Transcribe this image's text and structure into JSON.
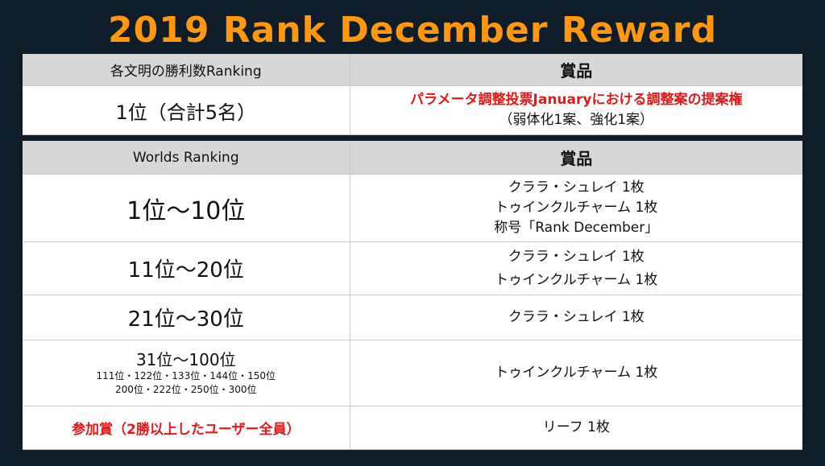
{
  "title": "2019 Rank December Reward",
  "table1": {
    "header_left": "各文明の勝利数Ranking",
    "header_right": "賞品",
    "rank": "1位（合計5名）",
    "reward_line1": "パラメータ調整投票Januaryにおける調整案の提案権",
    "reward_line2": "（弱体化1案、強化1案）"
  },
  "table2": {
    "header_left": "Worlds Ranking",
    "header_right": "賞品",
    "rows": [
      {
        "rank": "1位～10位",
        "rewards": [
          "クララ・シュレイ 1枚",
          "トゥインクルチャーム 1枚",
          "称号「Rank December」"
        ]
      },
      {
        "rank": "11位～20位",
        "rewards": [
          "クララ・シュレイ 1枚",
          "トゥインクルチャーム 1枚"
        ]
      },
      {
        "rank": "21位～30位",
        "rewards": [
          "クララ・シュレイ 1枚"
        ]
      },
      {
        "rank": "31位～100位",
        "rank_sub1": "111位・122位・133位・144位・150位",
        "rank_sub2": "200位・222位・250位・300位",
        "rewards": [
          "トゥインクルチャーム 1枚"
        ]
      },
      {
        "rank": "参加賞（2勝以上したユーザー全員）",
        "rewards": [
          "リーフ 1枚"
        ]
      }
    ]
  },
  "colors": {
    "background": "#0f1d2a",
    "title": "#ff9810",
    "highlight_red": "#e01919",
    "header_gray": "#d7d7d7"
  }
}
